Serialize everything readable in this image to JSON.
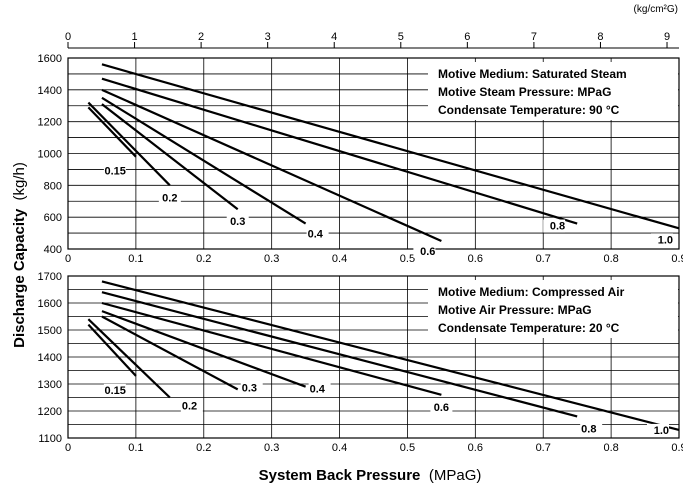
{
  "chart_data": [
    {
      "type": "line",
      "panel": "top",
      "annotations": [
        "Motive Medium: Saturated Steam",
        "Motive Steam Pressure: MPaG",
        "Condensate Temperature: 90 °C"
      ],
      "top_axis": {
        "unit": "(kg/cm²G)",
        "ticks": [
          "0",
          "1",
          "2",
          "3",
          "4",
          "5",
          "6",
          "7",
          "8",
          "9"
        ],
        "values": [
          0,
          1,
          2,
          3,
          4,
          5,
          6,
          7,
          8,
          9
        ]
      },
      "xlim": [
        0,
        0.9
      ],
      "ylim": [
        400,
        1600
      ],
      "yticks": [
        400,
        600,
        800,
        1000,
        1200,
        1400,
        1600
      ],
      "xticks": [
        0,
        0.1,
        0.2,
        0.3,
        0.4,
        0.5,
        0.6,
        0.7,
        0.8,
        0.9
      ],
      "xtick_labels": [
        "0",
        "0.1",
        "0.2",
        "0.3",
        "0.4",
        "0.5",
        "0.6",
        "0.7",
        "0.8",
        "0.9"
      ],
      "series": [
        {
          "name": "0.15",
          "x": [
            0.03,
            0.1
          ],
          "y": [
            1290,
            980
          ]
        },
        {
          "name": "0.2",
          "x": [
            0.03,
            0.15
          ],
          "y": [
            1320,
            800
          ]
        },
        {
          "name": "0.3",
          "x": [
            0.05,
            0.25
          ],
          "y": [
            1310,
            650
          ]
        },
        {
          "name": "0.4",
          "x": [
            0.05,
            0.35
          ],
          "y": [
            1350,
            560
          ]
        },
        {
          "name": "0.6",
          "x": [
            0.05,
            0.55
          ],
          "y": [
            1400,
            450
          ]
        },
        {
          "name": "0.8",
          "x": [
            0.05,
            0.75
          ],
          "y": [
            1470,
            560
          ]
        },
        {
          "name": "1.0",
          "x": [
            0.05,
            0.9
          ],
          "y": [
            1560,
            530
          ]
        }
      ]
    },
    {
      "type": "line",
      "panel": "bottom",
      "annotations": [
        "Motive Medium: Compressed Air",
        "Motive Air Pressure: MPaG",
        "Condensate Temperature: 20 °C"
      ],
      "xlim": [
        0,
        0.9
      ],
      "ylim": [
        1100,
        1700
      ],
      "yticks": [
        1100,
        1200,
        1300,
        1400,
        1500,
        1600,
        1700
      ],
      "xticks": [
        0,
        0.1,
        0.2,
        0.3,
        0.4,
        0.5,
        0.6,
        0.7,
        0.8,
        0.9
      ],
      "xtick_labels": [
        "0",
        "0.1",
        "0.2",
        "0.3",
        "0.4",
        "0.5",
        "0.6",
        "0.7",
        "0.8",
        "0.9"
      ],
      "series": [
        {
          "name": "0.15",
          "x": [
            0.03,
            0.1
          ],
          "y": [
            1520,
            1330
          ]
        },
        {
          "name": "0.2",
          "x": [
            0.03,
            0.15
          ],
          "y": [
            1540,
            1250
          ]
        },
        {
          "name": "0.3",
          "x": [
            0.05,
            0.25
          ],
          "y": [
            1550,
            1280
          ]
        },
        {
          "name": "0.4",
          "x": [
            0.05,
            0.35
          ],
          "y": [
            1570,
            1290
          ]
        },
        {
          "name": "0.6",
          "x": [
            0.05,
            0.55
          ],
          "y": [
            1600,
            1260
          ]
        },
        {
          "name": "0.8",
          "x": [
            0.05,
            0.75
          ],
          "y": [
            1640,
            1180
          ]
        },
        {
          "name": "1.0",
          "x": [
            0.05,
            0.9
          ],
          "y": [
            1680,
            1130
          ]
        }
      ]
    }
  ],
  "labels": {
    "ylabel": "Discharge Capacity",
    "ylabel_unit": "(kg/h)",
    "xlabel": "System Back Pressure",
    "xlabel_unit": "(MPaG)"
  }
}
